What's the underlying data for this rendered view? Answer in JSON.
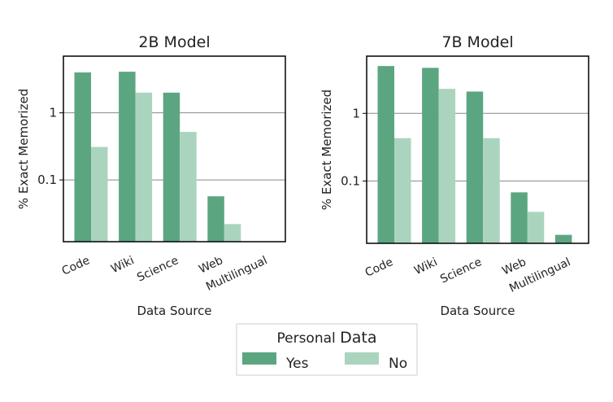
{
  "chart_data": [
    {
      "type": "bar",
      "title": "2B Model",
      "xlabel": "Data Source",
      "ylabel": "% Exact Memorized",
      "yscale": "log",
      "ylim": [
        0.012,
        7
      ],
      "yticks": [
        {
          "value": 0.1,
          "label": "0.1"
        },
        {
          "value": 1,
          "label": "1"
        }
      ],
      "categories": [
        "Code",
        "Wiki",
        "Science",
        "Web",
        "Multilingual"
      ],
      "series": [
        {
          "name": "Yes",
          "values": [
            4.0,
            4.1,
            2.0,
            0.057,
            null
          ]
        },
        {
          "name": "No",
          "values": [
            0.31,
            2.0,
            0.52,
            0.022,
            null
          ]
        }
      ]
    },
    {
      "type": "bar",
      "title": "7B Model",
      "xlabel": "Data Source",
      "ylabel": "% Exact Memorized",
      "yscale": "log",
      "ylim": [
        0.012,
        7
      ],
      "yticks": [
        {
          "value": 0.1,
          "label": "0.1"
        },
        {
          "value": 1,
          "label": "1"
        }
      ],
      "categories": [
        "Code",
        "Wiki",
        "Science",
        "Web",
        "Multilingual"
      ],
      "series": [
        {
          "name": "Yes",
          "values": [
            5.0,
            4.7,
            2.1,
            0.068,
            0.016
          ]
        },
        {
          "name": "No",
          "values": [
            0.43,
            2.3,
            0.43,
            0.035,
            null
          ]
        }
      ]
    }
  ],
  "legend": {
    "title_prefix": "Personal",
    "title_word": "Data",
    "placement": "bottom-center",
    "entries": [
      {
        "name": "Yes",
        "color": "#5ba681"
      },
      {
        "name": "No",
        "color": "#abd4be"
      }
    ]
  },
  "colors": {
    "yes": "#5ba681",
    "no": "#abd4be",
    "grid": "#888888",
    "axis": "#000000"
  }
}
